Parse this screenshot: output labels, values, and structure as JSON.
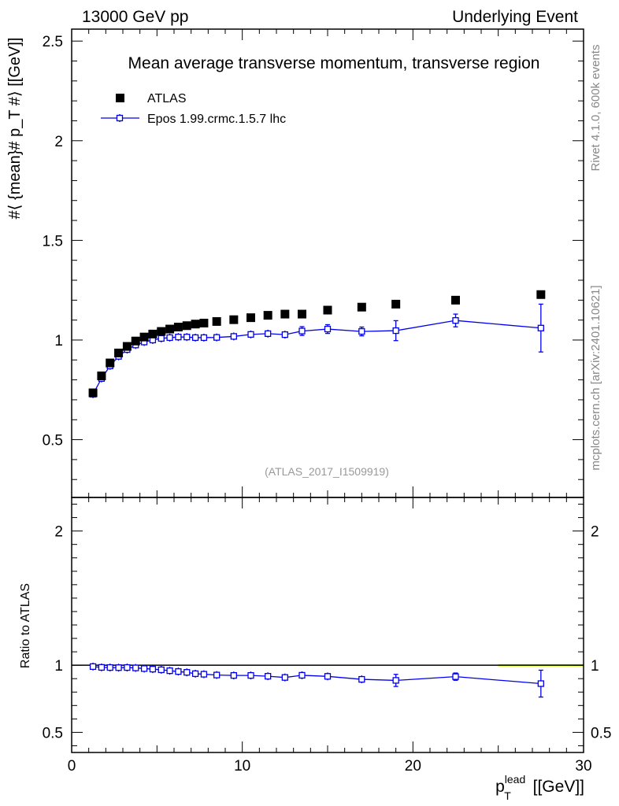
{
  "header": {
    "left": "13000 GeV pp",
    "right": "Underlying Event"
  },
  "side_labels": {
    "rivet": "Rivet 4.1.0,  600k events",
    "mcplots": "mcplots.cern.ch [arXiv:2401.10621]"
  },
  "colors": {
    "data": "#000000",
    "mc": "#0000ee",
    "band_yellow": "#ffff66",
    "band_green": "#99ee66"
  },
  "chart_data": [
    {
      "type": "scatter",
      "panel": "main",
      "title": "Mean average transverse momentum, transverse region",
      "analysis_tag": "(ATLAS_2017_I1509919)",
      "ylabel": "#⟨ {mean}# p_T #⟩ [[GeV]]",
      "xlim": [
        0,
        30
      ],
      "ylim": [
        0.21,
        2.56
      ],
      "yticks": [
        0.5,
        1,
        1.5,
        2,
        2.5
      ],
      "ytick_labels": [
        "0.5",
        "1",
        "1.5",
        "2",
        "2.5"
      ],
      "legend": {
        "placement": "top-left",
        "entries": [
          "ATLAS",
          "Epos 1.99.crmc.1.5.7 lhc"
        ]
      },
      "x": [
        1.25,
        1.75,
        2.25,
        2.75,
        3.25,
        3.75,
        4.25,
        4.75,
        5.25,
        5.75,
        6.25,
        6.75,
        7.25,
        7.75,
        8.5,
        9.5,
        10.5,
        11.5,
        12.5,
        13.5,
        15,
        17,
        19,
        22.5,
        27.5
      ],
      "series": [
        {
          "name": "ATLAS",
          "marker": "filled-square",
          "values": [
            0.735,
            0.82,
            0.885,
            0.935,
            0.968,
            0.995,
            1.015,
            1.03,
            1.043,
            1.055,
            1.065,
            1.072,
            1.08,
            1.085,
            1.093,
            1.102,
            1.112,
            1.124,
            1.13,
            1.13,
            1.15,
            1.165,
            1.18,
            1.2,
            1.228
          ]
        },
        {
          "name": "Epos 1.99.crmc.1.5.7 lhc",
          "marker": "open-cross-line",
          "values": [
            0.728,
            0.807,
            0.87,
            0.918,
            0.952,
            0.975,
            0.99,
            1.0,
            1.008,
            1.012,
            1.015,
            1.015,
            1.012,
            1.012,
            1.013,
            1.018,
            1.028,
            1.032,
            1.027,
            1.045,
            1.055,
            1.043,
            1.047,
            1.098,
            1.06
          ],
          "errors": [
            0.006,
            0.006,
            0.006,
            0.006,
            0.006,
            0.006,
            0.006,
            0.006,
            0.006,
            0.006,
            0.006,
            0.006,
            0.007,
            0.007,
            0.008,
            0.01,
            0.012,
            0.014,
            0.016,
            0.022,
            0.022,
            0.022,
            0.05,
            0.032,
            0.12
          ]
        }
      ]
    },
    {
      "type": "scatter",
      "panel": "ratio",
      "ylabel": "Ratio to ATLAS",
      "xlabel": "p_T^lead [[GeV]]",
      "xlim": [
        0,
        30
      ],
      "ylim": [
        0.35,
        2.25
      ],
      "yticks": [
        0.5,
        1,
        2
      ],
      "ytick_labels": [
        "0.5",
        "1",
        "2"
      ],
      "xtick_labels": [
        "0",
        "10",
        "20",
        "30"
      ],
      "reference_line": 1,
      "band": {
        "x_from": 25,
        "x_to": 30,
        "yellow_half_width": 0.012,
        "green_half_width": 0.006
      },
      "x": [
        1.25,
        1.75,
        2.25,
        2.75,
        3.25,
        3.75,
        4.25,
        4.75,
        5.25,
        5.75,
        6.25,
        6.75,
        7.25,
        7.75,
        8.5,
        9.5,
        10.5,
        11.5,
        12.5,
        13.5,
        15,
        17,
        19,
        22.5,
        27.5
      ],
      "series": [
        {
          "name": "Epos 1.99.crmc.1.5.7 lhc",
          "values": [
            0.99,
            0.984,
            0.983,
            0.982,
            0.983,
            0.98,
            0.975,
            0.971,
            0.966,
            0.959,
            0.953,
            0.947,
            0.937,
            0.933,
            0.927,
            0.924,
            0.924,
            0.918,
            0.909,
            0.925,
            0.917,
            0.895,
            0.887,
            0.915,
            0.863
          ],
          "errors": [
            0.008,
            0.008,
            0.008,
            0.008,
            0.008,
            0.008,
            0.008,
            0.008,
            0.008,
            0.008,
            0.008,
            0.008,
            0.009,
            0.009,
            0.01,
            0.011,
            0.012,
            0.013,
            0.015,
            0.02,
            0.02,
            0.02,
            0.045,
            0.027,
            0.1
          ]
        }
      ]
    }
  ]
}
